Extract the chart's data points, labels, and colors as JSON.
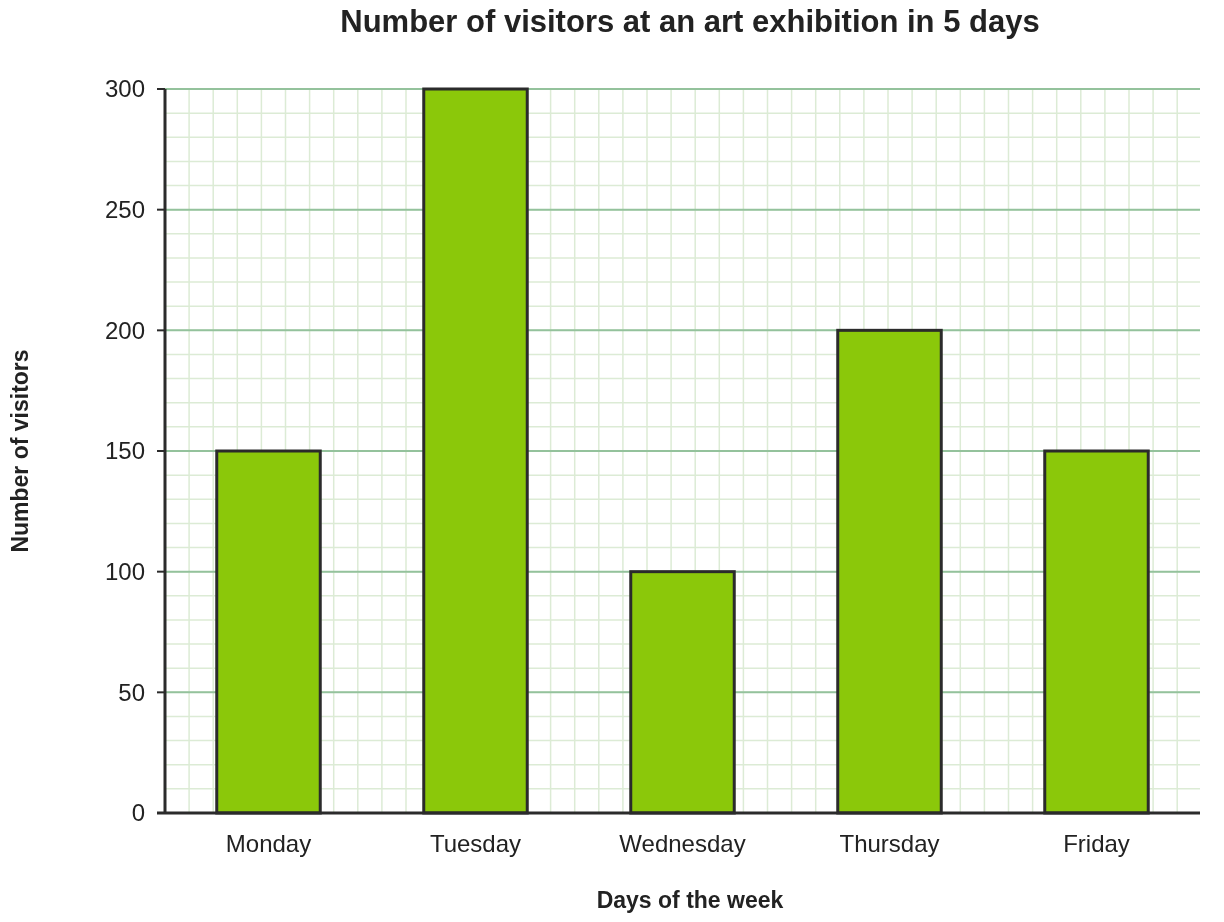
{
  "chart_data": {
    "type": "bar",
    "title": "Number of visitors at an art exhibition in 5 days",
    "xlabel": "Days of the week",
    "ylabel": "Number of visitors",
    "categories": [
      "Monday",
      "Tuesday",
      "Wednesday",
      "Thursday",
      "Friday"
    ],
    "values": [
      150,
      300,
      100,
      200,
      150
    ],
    "color": "#8bc80a",
    "ylim": [
      0,
      300
    ],
    "yticks": [
      0,
      50,
      100,
      150,
      200,
      250,
      300
    ],
    "grid": true
  }
}
